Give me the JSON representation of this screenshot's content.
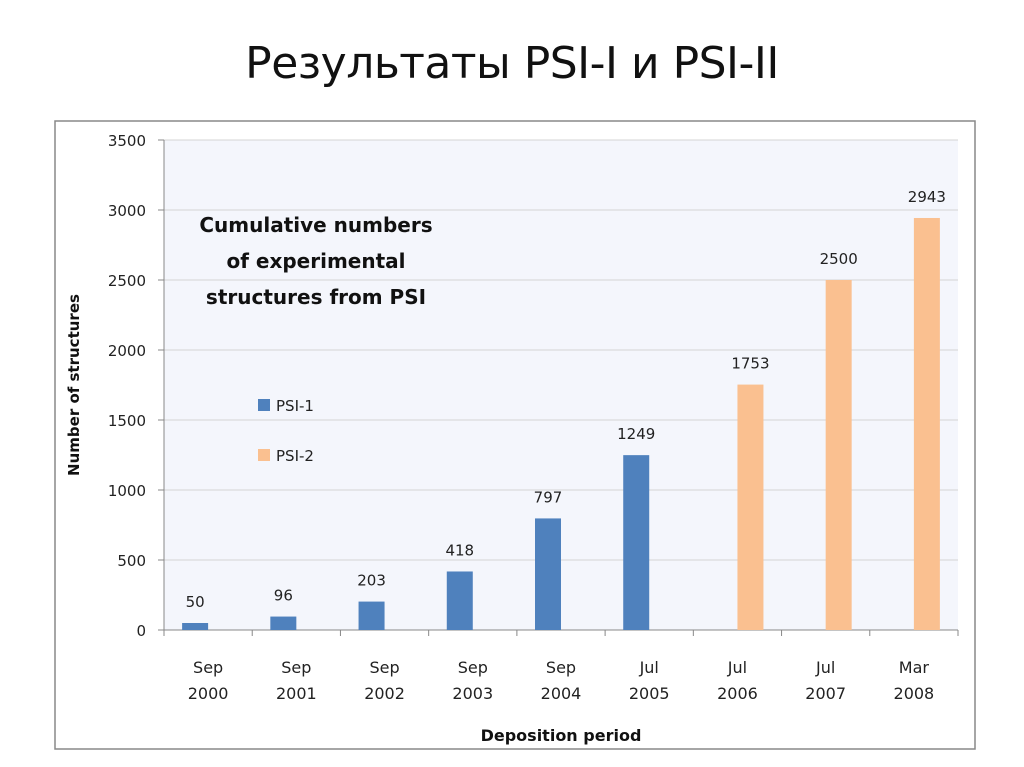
{
  "slide": {
    "title": "Результаты PSI-I и PSI-II"
  },
  "chart_data": {
    "type": "bar",
    "title": "Cumulative numbers of experimental structures from PSI",
    "title_lines": [
      "Cumulative numbers",
      "of experimental",
      "structures from PSI"
    ],
    "xlabel": "Deposition period",
    "ylabel": "Number of structures",
    "ylim": [
      0,
      3500
    ],
    "yticks": [
      0,
      500,
      1000,
      1500,
      2000,
      2500,
      3000,
      3500
    ],
    "grid": true,
    "legend_placement": "left-center",
    "categories": [
      [
        "Sep",
        "2000"
      ],
      [
        "Sep",
        "2001"
      ],
      [
        "Sep",
        "2002"
      ],
      [
        "Sep",
        "2003"
      ],
      [
        "Sep",
        "2004"
      ],
      [
        "Jul",
        "2005"
      ],
      [
        "Jul",
        "2006"
      ],
      [
        "Jul",
        "2007"
      ],
      [
        "Mar",
        "2008"
      ]
    ],
    "series": [
      {
        "name": "PSI-1",
        "color": "#4f81bd",
        "values": [
          50,
          96,
          203,
          418,
          797,
          1249,
          null,
          null,
          null
        ]
      },
      {
        "name": "PSI-2",
        "color": "#fac090",
        "values": [
          null,
          null,
          null,
          null,
          null,
          null,
          1753,
          2500,
          2943
        ]
      }
    ],
    "plot_background": "#f4f6fc"
  }
}
